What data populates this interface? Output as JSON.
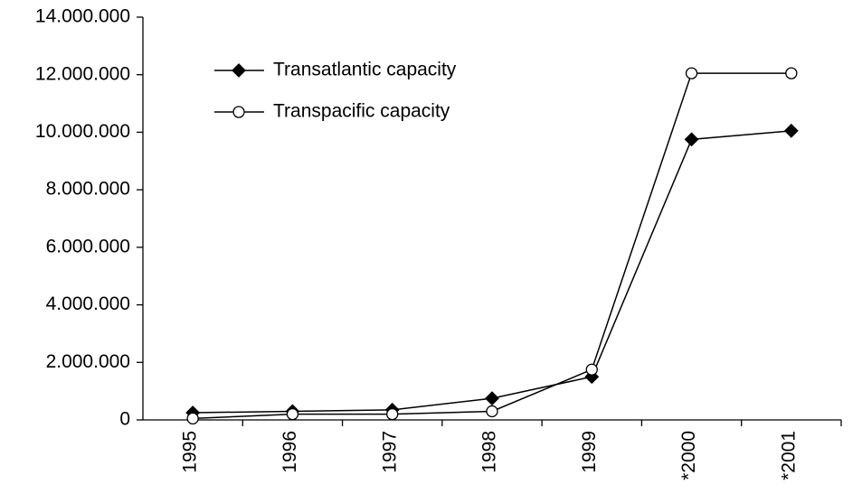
{
  "chart_data": {
    "type": "line",
    "categories": [
      "1995",
      "1996",
      "1997",
      "1998",
      "1999",
      "*2000",
      "*2001"
    ],
    "series": [
      {
        "name": "Transatlantic capacity",
        "color": "#000000",
        "marker": "diamond",
        "values": [
          250000,
          300000,
          350000,
          750000,
          1500000,
          9750000,
          10050000
        ]
      },
      {
        "name": "Transpacific capacity",
        "color": "#000000",
        "marker": "circle",
        "values": [
          50000,
          200000,
          200000,
          300000,
          1750000,
          12050000,
          12050000
        ]
      }
    ],
    "ylim": [
      0,
      14000000
    ],
    "yticks": [
      0,
      {
        "value": 2000000,
        "label": "2.000.000"
      },
      {
        "value": 4000000,
        "label": "4.000.000"
      },
      {
        "value": 6000000,
        "label": "6.000.000"
      },
      {
        "value": 8000000,
        "label": "8.000.000"
      },
      {
        "value": 10000000,
        "label": "10.000.000"
      },
      {
        "value": 12000000,
        "label": "12.000.000"
      },
      {
        "value": 14000000,
        "label": "14.000.000"
      }
    ],
    "grid": false,
    "legend": "upper left"
  }
}
